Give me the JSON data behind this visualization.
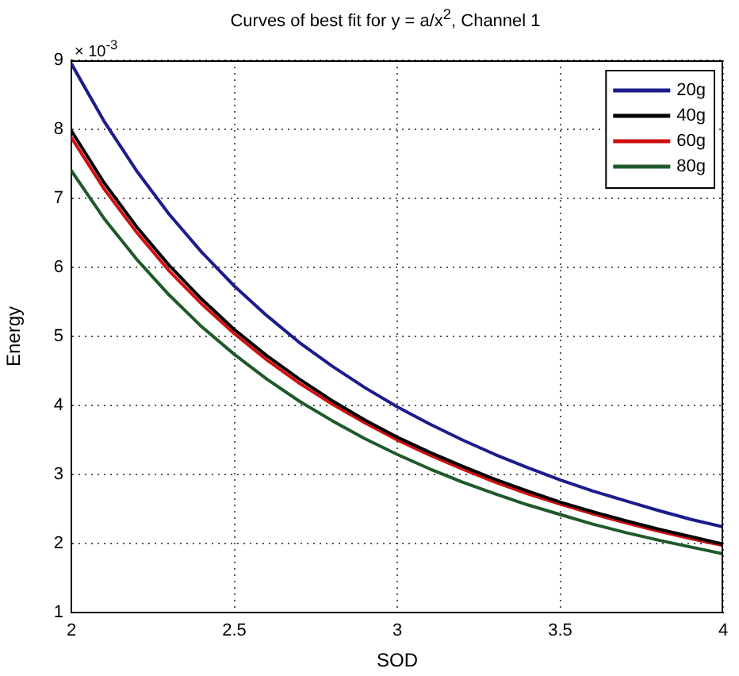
{
  "chart_data": {
    "type": "line",
    "title": "Curves of best fit for y = a/x$^{2}$, Channel 1",
    "xlabel": "SOD",
    "ylabel": "Energy",
    "annotations": [
      "× 10$^{-3}$"
    ],
    "x": [
      2,
      2.1,
      2.2,
      2.3,
      2.4,
      2.5,
      2.6,
      2.7,
      2.8,
      2.9,
      3,
      3.1,
      3.2,
      3.3,
      3.4,
      3.5,
      3.6,
      3.7,
      3.8,
      3.9,
      4
    ],
    "xlim": [
      2,
      4
    ],
    "xticks": [
      2,
      2.5,
      3,
      3.5,
      4
    ],
    "ylim": [
      1,
      9
    ],
    "yticks": [
      1,
      2,
      3,
      4,
      5,
      6,
      7,
      8,
      9
    ],
    "grid": true,
    "legend": "top right",
    "line_style": "solid",
    "series": [
      {
        "name": "20g",
        "color": "#1c1c8c",
        "values": [
          8.95,
          8.12,
          7.4,
          6.77,
          6.22,
          5.73,
          5.3,
          4.91,
          4.57,
          4.26,
          3.98,
          3.73,
          3.5,
          3.29,
          3.1,
          2.92,
          2.76,
          2.62,
          2.48,
          2.35,
          2.24
        ]
      },
      {
        "name": "40g",
        "color": "#000000",
        "values": [
          7.98,
          7.23,
          6.59,
          6.03,
          5.54,
          5.1,
          4.72,
          4.38,
          4.07,
          3.79,
          3.54,
          3.32,
          3.12,
          2.93,
          2.76,
          2.6,
          2.46,
          2.33,
          2.21,
          2.1,
          1.99
        ]
      },
      {
        "name": "60g",
        "color": "#d01010",
        "values": [
          7.88,
          7.14,
          6.51,
          5.95,
          5.47,
          5.04,
          4.66,
          4.32,
          4.02,
          3.75,
          3.5,
          3.28,
          3.08,
          2.89,
          2.72,
          2.57,
          2.43,
          2.3,
          2.18,
          2.07,
          1.97
        ]
      },
      {
        "name": "80g",
        "color": "#1f5a2a",
        "values": [
          7.4,
          6.71,
          6.12,
          5.6,
          5.14,
          4.74,
          4.38,
          4.06,
          3.78,
          3.52,
          3.29,
          3.08,
          2.89,
          2.72,
          2.56,
          2.42,
          2.28,
          2.16,
          2.05,
          1.95,
          1.85
        ]
      }
    ]
  }
}
